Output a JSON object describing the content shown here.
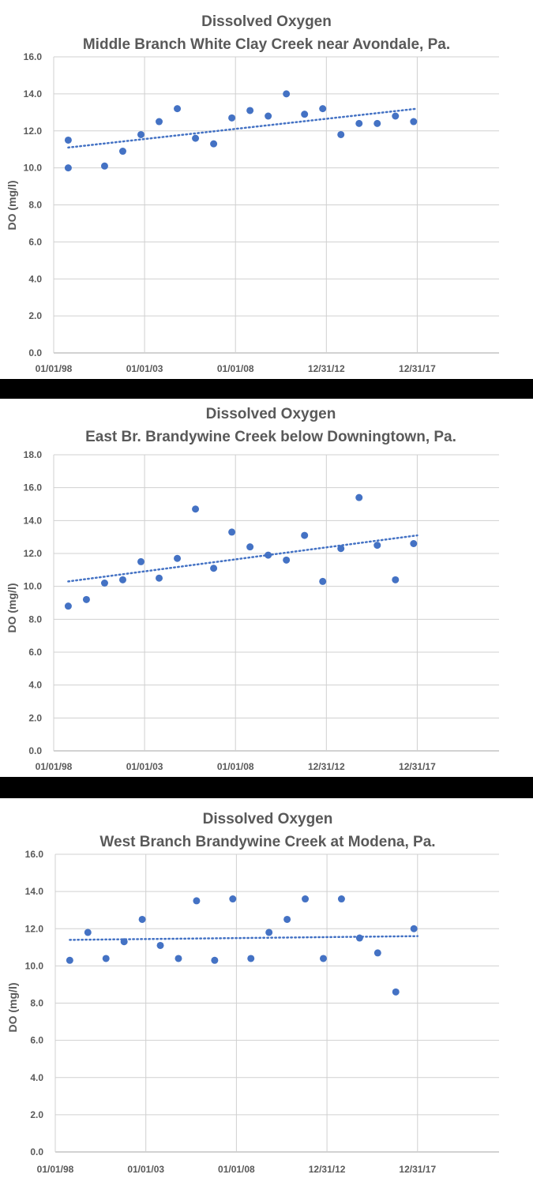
{
  "colors": {
    "marker": "#4472C4",
    "trend": "#4472C4",
    "grid": "#D0D0D0",
    "text": "#595959",
    "separator": "#000000"
  },
  "chart_data": [
    {
      "type": "scatter",
      "title": "Dissolved Oxygen",
      "subtitle": "Middle Branch White Clay Creek near Avondale, Pa.",
      "ylabel": "DO (mg/l)",
      "xlabel": "",
      "y_ticks": [
        "0.0",
        "2.0",
        "4.0",
        "6.0",
        "8.0",
        "10.0",
        "12.0",
        "14.0",
        "16.0"
      ],
      "ylim": [
        0,
        16
      ],
      "x_ticks": [
        "01/01/98",
        "01/01/03",
        "01/01/08",
        "12/31/12",
        "12/31/17"
      ],
      "x_tick_years": [
        1998,
        2003,
        2008,
        2013,
        2018
      ],
      "xlim_years": [
        1998,
        2022.5
      ],
      "grid": true,
      "legend": "none",
      "trendline": {
        "style": "dotted",
        "x_years": [
          1998.8,
          2018.0
        ],
        "y": [
          11.1,
          13.2
        ]
      },
      "x_years": [
        1998.8,
        1998.8,
        2000.8,
        2001.8,
        2002.8,
        2003.8,
        2004.8,
        2005.8,
        2006.8,
        2007.8,
        2008.8,
        2009.8,
        2010.8,
        2011.8,
        2012.8,
        2013.8,
        2014.8,
        2015.8,
        2016.8,
        2017.8
      ],
      "y": [
        11.5,
        10.0,
        10.1,
        10.9,
        11.8,
        12.5,
        13.2,
        11.6,
        11.3,
        12.7,
        13.1,
        12.8,
        14.0,
        12.9,
        13.2,
        11.8,
        12.4,
        12.4,
        12.8,
        12.5
      ]
    },
    {
      "type": "scatter",
      "title": "Dissolved Oxygen",
      "subtitle": "East Br. Brandywine Creek below Downingtown, Pa.",
      "ylabel": "DO (mg/l)",
      "xlabel": "",
      "y_ticks": [
        "0.0",
        "2.0",
        "4.0",
        "6.0",
        "8.0",
        "10.0",
        "12.0",
        "14.0",
        "16.0",
        "18.0"
      ],
      "ylim": [
        0,
        18
      ],
      "x_ticks": [
        "01/01/98",
        "01/01/03",
        "01/01/08",
        "12/31/12",
        "12/31/17"
      ],
      "x_tick_years": [
        1998,
        2003,
        2008,
        2013,
        2018
      ],
      "xlim_years": [
        1998,
        2022.5
      ],
      "grid": true,
      "legend": "none",
      "trendline": {
        "style": "dotted",
        "x_years": [
          1998.8,
          2018.0
        ],
        "y": [
          10.3,
          13.1
        ]
      },
      "x_years": [
        1998.8,
        1999.8,
        2000.8,
        2001.8,
        2002.8,
        2003.8,
        2004.8,
        2005.8,
        2006.8,
        2007.8,
        2008.8,
        2009.8,
        2010.8,
        2011.8,
        2012.8,
        2013.8,
        2014.8,
        2015.8,
        2016.8,
        2017.8
      ],
      "y": [
        8.8,
        9.2,
        10.2,
        10.4,
        11.5,
        10.5,
        11.7,
        14.7,
        11.1,
        13.3,
        12.4,
        11.9,
        11.6,
        13.1,
        10.3,
        12.3,
        15.4,
        12.5,
        10.4,
        12.6
      ]
    },
    {
      "type": "scatter",
      "title": "Dissolved Oxygen",
      "subtitle": "West Branch Brandywine Creek at Modena, Pa.",
      "ylabel": "DO (mg/l)",
      "xlabel": "",
      "y_ticks": [
        "0.0",
        "2.0",
        "4.0",
        "6.0",
        "8.0",
        "10.0",
        "12.0",
        "14.0",
        "16.0"
      ],
      "ylim": [
        0,
        16
      ],
      "x_ticks": [
        "01/01/98",
        "01/01/03",
        "01/01/08",
        "12/31/12",
        "12/31/17"
      ],
      "x_tick_years": [
        1998,
        2003,
        2008,
        2013,
        2018
      ],
      "xlim_years": [
        1998,
        2022.5
      ],
      "grid": true,
      "legend": "none",
      "trendline": {
        "style": "dotted",
        "x_years": [
          1998.8,
          2018.0
        ],
        "y": [
          11.4,
          11.6
        ]
      },
      "x_years": [
        1998.8,
        1999.8,
        2000.8,
        2001.8,
        2002.8,
        2003.8,
        2004.8,
        2005.8,
        2006.8,
        2007.8,
        2008.8,
        2009.8,
        2010.8,
        2011.8,
        2012.8,
        2013.8,
        2014.8,
        2015.8,
        2016.8,
        2017.8
      ],
      "y": [
        10.3,
        11.8,
        10.4,
        11.3,
        12.5,
        11.1,
        10.4,
        13.5,
        10.3,
        13.6,
        10.4,
        11.8,
        12.5,
        13.6,
        10.4,
        13.6,
        11.5,
        10.7,
        8.6,
        12.0
      ]
    }
  ]
}
